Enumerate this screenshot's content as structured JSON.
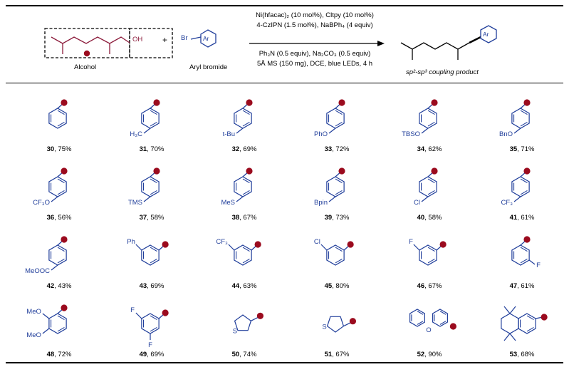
{
  "scheme": {
    "alcohol_label": "Alcohol",
    "oh_label": "OH",
    "plus": "+",
    "br_label": "Br",
    "ar_label": "Ar",
    "aryl_bromide_label": "Aryl bromide",
    "conditions": [
      "Ni(hfacac)₂ (10 mol%), Cltpy (10 mol%)",
      "4-CzIPN (1.5 mol%), NaBPh₄ (4 equiv)",
      "Ph₃N (0.5 equiv), Na₂CO₃ (0.5 equiv)",
      "5Å MS (150 mg), DCE, blue LEDs, 4 h"
    ],
    "product_label": "sp²-sp³ coupling product",
    "colors": {
      "structure": "#1f3d9a",
      "dot": "#9b0b1e",
      "alcohol_bond": "#8b1a3a"
    }
  },
  "products": [
    {
      "id": "30",
      "yield": "75%",
      "sub": "none"
    },
    {
      "id": "31",
      "yield": "70%",
      "sub": "H₃C",
      "pos": "para"
    },
    {
      "id": "32",
      "yield": "69%",
      "sub": "t-Bu",
      "pos": "para"
    },
    {
      "id": "33",
      "yield": "72%",
      "sub": "PhO",
      "pos": "para"
    },
    {
      "id": "34",
      "yield": "62%",
      "sub": "TBSO",
      "pos": "para"
    },
    {
      "id": "35",
      "yield": "71%",
      "sub": "BnO",
      "pos": "para"
    },
    {
      "id": "36",
      "yield": "56%",
      "sub": "CF₃O",
      "pos": "para"
    },
    {
      "id": "37",
      "yield": "58%",
      "sub": "TMS",
      "pos": "para"
    },
    {
      "id": "38",
      "yield": "67%",
      "sub": "MeS",
      "pos": "para"
    },
    {
      "id": "39",
      "yield": "73%",
      "sub": "Bpin",
      "pos": "para"
    },
    {
      "id": "40",
      "yield": "58%",
      "sub": "Cl",
      "pos": "para"
    },
    {
      "id": "41",
      "yield": "61%",
      "sub": "CF₃",
      "pos": "para"
    },
    {
      "id": "42",
      "yield": "43%",
      "sub": "MeOOC",
      "pos": "para"
    },
    {
      "id": "43",
      "yield": "69%",
      "sub": "Ph",
      "pos": "meta"
    },
    {
      "id": "44",
      "yield": "63%",
      "sub": "CF₃",
      "pos": "meta"
    },
    {
      "id": "45",
      "yield": "80%",
      "sub": "Cl",
      "pos": "meta"
    },
    {
      "id": "46",
      "yield": "67%",
      "sub": "F",
      "pos": "meta"
    },
    {
      "id": "47",
      "yield": "61%",
      "sub": "F",
      "pos": "ortho"
    },
    {
      "id": "48",
      "yield": "72%",
      "sub": "MeO",
      "sub2": "MeO",
      "pos": "dimeo"
    },
    {
      "id": "49",
      "yield": "69%",
      "sub": "F",
      "sub2": "F",
      "pos": "difluoro"
    },
    {
      "id": "50",
      "yield": "74%",
      "sub": "S",
      "pos": "thiophene3"
    },
    {
      "id": "51",
      "yield": "67%",
      "sub": "S",
      "pos": "thiophene2"
    },
    {
      "id": "52",
      "yield": "90%",
      "sub": "O",
      "pos": "dibenzofuran"
    },
    {
      "id": "53",
      "yield": "68%",
      "sub": "",
      "pos": "tetralin"
    }
  ]
}
